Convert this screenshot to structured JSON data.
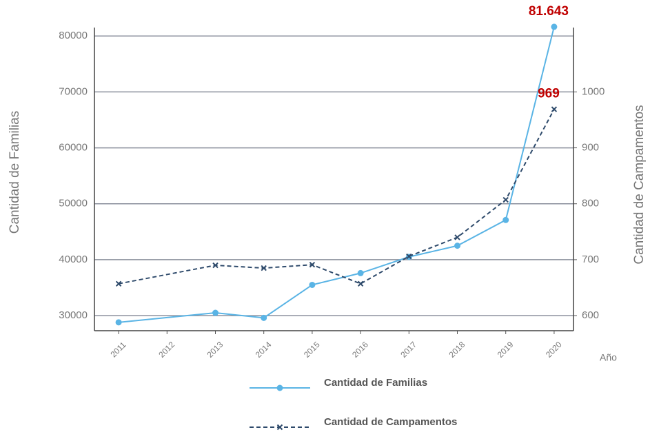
{
  "chart_data": {
    "type": "line",
    "x": [
      2011,
      2013,
      2014,
      2015,
      2016,
      2017,
      2018,
      2019,
      2020
    ],
    "xlim": [
      2010.5,
      2020.4
    ],
    "xticks": [
      2011,
      2012,
      2013,
      2014,
      2015,
      2016,
      2017,
      2018,
      2019,
      2020
    ],
    "xlabel": "Año",
    "ylabel": "Cantidad de Familias",
    "y2label": "Cantidad de Campamentos",
    "ylim": [
      27300,
      82000
    ],
    "yticks": [
      30000,
      40000,
      50000,
      60000,
      70000,
      80000
    ],
    "y2lim": [
      573,
      1120
    ],
    "y2ticks": [
      600,
      700,
      800,
      900,
      1000
    ],
    "grid": true,
    "legend": "bottom",
    "series": [
      {
        "name": "Cantidad de Familias",
        "color": "#5ab4e5",
        "marker": "circle",
        "linestyle": "solid",
        "values": [
          28800,
          30500,
          29600,
          35500,
          37600,
          40500,
          42500,
          47100,
          81643
        ],
        "value_labels": [
          null,
          null,
          null,
          null,
          null,
          null,
          null,
          null,
          "81.643"
        ]
      },
      {
        "name": "Cantidad de Campamentos",
        "color": "#2e4a6b",
        "marker": "x",
        "linestyle": "dashed",
        "axis": "y2",
        "values": [
          657,
          690,
          685,
          691,
          657,
          706,
          740,
          807,
          969
        ],
        "value_labels": [
          null,
          null,
          null,
          null,
          null,
          null,
          null,
          null,
          "969"
        ]
      }
    ]
  }
}
